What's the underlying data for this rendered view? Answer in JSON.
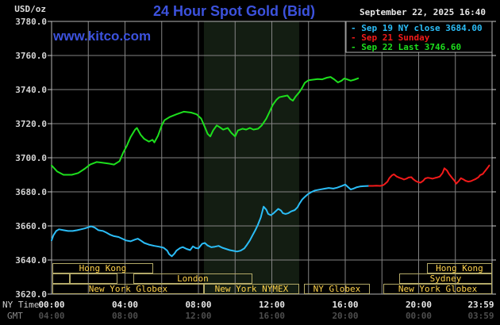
{
  "header": {
    "units_label": "USD/oz",
    "title": "24 Hour Spot Gold (Bid)",
    "watermark": "www.kitco.com",
    "datetime": "September 22, 2025 16:40"
  },
  "legend": {
    "items": [
      {
        "label": "Sep 19 NY close 3684.00",
        "color": "#2bbdf7"
      },
      {
        "label": "Sep 21 Sunday",
        "color": "#f31a1a"
      },
      {
        "label": "Sep 22 Last 3746.60",
        "color": "#1ddf1d"
      }
    ]
  },
  "axes": {
    "y_labels": [
      "3780.0",
      "3760.0",
      "3740.0",
      "3720.0",
      "3700.0",
      "3680.0",
      "3660.0",
      "3640.0",
      "3620.0"
    ],
    "ny_time_label": "NY Time",
    "gmt_label": "GMT",
    "ny_times": [
      "00:00",
      "04:00",
      "08:00",
      "12:00",
      "16:00",
      "20:00",
      "23:59"
    ],
    "gmt_times": [
      "04:00",
      "08:00",
      "12:00",
      "16:00",
      "20:00",
      "00:00",
      "03:59"
    ]
  },
  "sessions": {
    "rows": [
      [
        {
          "label": "Hong Kong",
          "start": 0.04,
          "end": 5.53
        },
        {
          "label": "Hong Kong",
          "start": 20.45,
          "end": 24
        }
      ],
      [
        {
          "label": "",
          "start": 0.04,
          "end": 0.99
        },
        {
          "label": "",
          "start": 0.99,
          "end": 3.59
        },
        {
          "label": "London",
          "start": 4.45,
          "end": 10.94
        },
        {
          "label": "Sydney",
          "start": 18.94,
          "end": 24
        }
      ],
      [
        {
          "label": "New York Globex",
          "start": 0.04,
          "end": 8.3
        },
        {
          "label": "New York NYMEX",
          "start": 8.3,
          "end": 13.49
        },
        {
          "label": "NY Globex",
          "start": 13.75,
          "end": 17.34
        },
        {
          "label": "New York Globex",
          "start": 18.08,
          "end": 24
        }
      ]
    ]
  },
  "chart_data": {
    "type": "line",
    "title": "24 Hour Spot Gold (Bid)",
    "xlabel": "NY Time (hours 00:00-23:59)",
    "ylabel": "USD/oz",
    "ylim": [
      3620,
      3780
    ],
    "xlim_hours": [
      0,
      24
    ],
    "grid": true,
    "y_tick_step": 20,
    "x_tick_step_hours": 2,
    "shaded_band_hours": [
      8.3,
      13.49
    ],
    "band_color": "#131d12",
    "grid_color": "#848484",
    "series": [
      {
        "name": "Sep 19 NY close",
        "color": "#2bbdf7",
        "points": [
          [
            0,
            3651.5
          ],
          [
            0.1,
            3654.5
          ],
          [
            0.25,
            3657
          ],
          [
            0.4,
            3658
          ],
          [
            0.65,
            3657.5
          ],
          [
            0.9,
            3657
          ],
          [
            1.15,
            3657
          ],
          [
            1.4,
            3657.5
          ],
          [
            1.6,
            3658
          ],
          [
            1.8,
            3658.5
          ],
          [
            2,
            3659.2
          ],
          [
            2.15,
            3659.8
          ],
          [
            2.35,
            3659
          ],
          [
            2.55,
            3657.5
          ],
          [
            2.8,
            3657
          ],
          [
            3,
            3656
          ],
          [
            3.2,
            3654.8
          ],
          [
            3.4,
            3654
          ],
          [
            3.65,
            3653.5
          ],
          [
            3.85,
            3652.5
          ],
          [
            4.05,
            3651.5
          ],
          [
            4.3,
            3651
          ],
          [
            4.55,
            3652
          ],
          [
            4.7,
            3652.5
          ],
          [
            4.85,
            3651.5
          ],
          [
            5.05,
            3650
          ],
          [
            5.3,
            3649
          ],
          [
            5.6,
            3648.3
          ],
          [
            5.85,
            3647.8
          ],
          [
            6.1,
            3647.2
          ],
          [
            6.3,
            3645.5
          ],
          [
            6.4,
            3643.5
          ],
          [
            6.55,
            3642.2
          ],
          [
            6.7,
            3643.8
          ],
          [
            6.8,
            3645.5
          ],
          [
            7,
            3647
          ],
          [
            7.15,
            3647.6
          ],
          [
            7.35,
            3646.5
          ],
          [
            7.55,
            3645.8
          ],
          [
            7.7,
            3648
          ],
          [
            7.85,
            3647
          ],
          [
            8,
            3646.8
          ],
          [
            8.2,
            3649.5
          ],
          [
            8.35,
            3650
          ],
          [
            8.5,
            3648.5
          ],
          [
            8.7,
            3647.5
          ],
          [
            8.9,
            3647.8
          ],
          [
            9.1,
            3648.3
          ],
          [
            9.3,
            3647.2
          ],
          [
            9.5,
            3646.5
          ],
          [
            9.7,
            3645.8
          ],
          [
            9.9,
            3645.4
          ],
          [
            10.1,
            3645
          ],
          [
            10.3,
            3645.5
          ],
          [
            10.5,
            3646.8
          ],
          [
            10.65,
            3649
          ],
          [
            10.8,
            3651.5
          ],
          [
            10.95,
            3654.5
          ],
          [
            11.1,
            3657.5
          ],
          [
            11.25,
            3661
          ],
          [
            11.4,
            3665
          ],
          [
            11.55,
            3671.3
          ],
          [
            11.7,
            3669.5
          ],
          [
            11.8,
            3667
          ],
          [
            11.95,
            3666.3
          ],
          [
            12.1,
            3667.5
          ],
          [
            12.25,
            3669
          ],
          [
            12.35,
            3670
          ],
          [
            12.5,
            3669
          ],
          [
            12.6,
            3667.5
          ],
          [
            12.75,
            3667
          ],
          [
            12.9,
            3667.5
          ],
          [
            13.05,
            3668.5
          ],
          [
            13.25,
            3669.3
          ],
          [
            13.4,
            3671
          ],
          [
            13.5,
            3673
          ],
          [
            13.65,
            3675.5
          ],
          [
            13.8,
            3677
          ],
          [
            13.95,
            3678.5
          ],
          [
            14.15,
            3679.8
          ],
          [
            14.35,
            3680.8
          ],
          [
            14.6,
            3681.3
          ],
          [
            14.85,
            3681.8
          ],
          [
            15.1,
            3682.3
          ],
          [
            15.35,
            3681.9
          ],
          [
            15.55,
            3682.4
          ],
          [
            15.8,
            3683.4
          ],
          [
            16,
            3684.3
          ],
          [
            16.15,
            3682.8
          ],
          [
            16.3,
            3681.4
          ],
          [
            16.45,
            3681.9
          ],
          [
            16.6,
            3682.6
          ],
          [
            16.8,
            3683.1
          ],
          [
            17,
            3683.3
          ],
          [
            17.3,
            3683.5
          ]
        ]
      },
      {
        "name": "Sep 21 Sunday",
        "color": "#f31a1a",
        "points": [
          [
            17.3,
            3683.5
          ],
          [
            17.5,
            3683.5
          ],
          [
            17.7,
            3683.6
          ],
          [
            17.9,
            3683.5
          ],
          [
            18.05,
            3683.8
          ],
          [
            18.15,
            3684.5
          ],
          [
            18.3,
            3686
          ],
          [
            18.4,
            3688
          ],
          [
            18.55,
            3689.7
          ],
          [
            18.65,
            3690.3
          ],
          [
            18.8,
            3689
          ],
          [
            18.95,
            3688.3
          ],
          [
            19.1,
            3687.7
          ],
          [
            19.2,
            3687.2
          ],
          [
            19.35,
            3687.8
          ],
          [
            19.45,
            3688.4
          ],
          [
            19.6,
            3688.6
          ],
          [
            19.7,
            3687.5
          ],
          [
            19.85,
            3686.3
          ],
          [
            20,
            3685.6
          ],
          [
            20.1,
            3685.4
          ],
          [
            20.25,
            3686.5
          ],
          [
            20.35,
            3687.8
          ],
          [
            20.5,
            3688.3
          ],
          [
            20.65,
            3688
          ],
          [
            20.75,
            3687.7
          ],
          [
            20.9,
            3688.2
          ],
          [
            21,
            3688.4
          ],
          [
            21.15,
            3689
          ],
          [
            21.3,
            3691
          ],
          [
            21.4,
            3693.8
          ],
          [
            21.55,
            3692.5
          ],
          [
            21.65,
            3690.5
          ],
          [
            21.8,
            3688.5
          ],
          [
            21.95,
            3686.5
          ],
          [
            22.05,
            3684.8
          ],
          [
            22.2,
            3686.5
          ],
          [
            22.3,
            3688
          ],
          [
            22.45,
            3687.2
          ],
          [
            22.55,
            3686.5
          ],
          [
            22.7,
            3686
          ],
          [
            22.85,
            3686.3
          ],
          [
            23,
            3687
          ],
          [
            23.1,
            3687.5
          ],
          [
            23.25,
            3688.5
          ],
          [
            23.35,
            3689.8
          ],
          [
            23.5,
            3690.5
          ],
          [
            23.6,
            3692
          ],
          [
            23.75,
            3694
          ],
          [
            23.85,
            3695.5
          ]
        ]
      },
      {
        "name": "Sep 22 Last",
        "color": "#1ddf1d",
        "points": [
          [
            0,
            3695.5
          ],
          [
            0.3,
            3692
          ],
          [
            0.65,
            3690
          ],
          [
            1.1,
            3690
          ],
          [
            1.45,
            3691
          ],
          [
            1.8,
            3693.5
          ],
          [
            2.1,
            3696
          ],
          [
            2.45,
            3697.5
          ],
          [
            2.8,
            3697
          ],
          [
            3.15,
            3696.5
          ],
          [
            3.4,
            3696
          ],
          [
            3.7,
            3698
          ],
          [
            3.9,
            3703
          ],
          [
            4.1,
            3707
          ],
          [
            4.3,
            3712
          ],
          [
            4.55,
            3716.5
          ],
          [
            4.65,
            3717.5
          ],
          [
            4.85,
            3713.5
          ],
          [
            5.05,
            3711
          ],
          [
            5.3,
            3709.5
          ],
          [
            5.5,
            3710.5
          ],
          [
            5.6,
            3709
          ],
          [
            5.8,
            3713
          ],
          [
            6,
            3719
          ],
          [
            6.15,
            3722
          ],
          [
            6.45,
            3724
          ],
          [
            6.8,
            3725.5
          ],
          [
            7.2,
            3727
          ],
          [
            7.6,
            3726.5
          ],
          [
            7.9,
            3725.5
          ],
          [
            8.15,
            3723
          ],
          [
            8.35,
            3718
          ],
          [
            8.5,
            3714
          ],
          [
            8.65,
            3712.5
          ],
          [
            8.8,
            3716
          ],
          [
            9,
            3719
          ],
          [
            9.15,
            3718
          ],
          [
            9.35,
            3716.5
          ],
          [
            9.6,
            3717.5
          ],
          [
            9.8,
            3714.5
          ],
          [
            10,
            3712.5
          ],
          [
            10.15,
            3716
          ],
          [
            10.4,
            3717
          ],
          [
            10.6,
            3716.5
          ],
          [
            10.8,
            3717.5
          ],
          [
            11,
            3716.5
          ],
          [
            11.25,
            3717
          ],
          [
            11.45,
            3719
          ],
          [
            11.7,
            3723
          ],
          [
            11.9,
            3727.5
          ],
          [
            12.05,
            3731
          ],
          [
            12.25,
            3734
          ],
          [
            12.4,
            3735.5
          ],
          [
            12.6,
            3736
          ],
          [
            12.85,
            3736.5
          ],
          [
            13,
            3734.5
          ],
          [
            13.15,
            3733.5
          ],
          [
            13.3,
            3736
          ],
          [
            13.5,
            3738.5
          ],
          [
            13.65,
            3741
          ],
          [
            13.8,
            3744
          ],
          [
            14,
            3745.5
          ],
          [
            14.25,
            3745.8
          ],
          [
            14.5,
            3746.2
          ],
          [
            14.75,
            3746
          ],
          [
            15,
            3747
          ],
          [
            15.2,
            3747.4
          ],
          [
            15.4,
            3746
          ],
          [
            15.6,
            3744.2
          ],
          [
            15.8,
            3745.2
          ],
          [
            15.95,
            3746.5
          ],
          [
            16.1,
            3746
          ],
          [
            16.3,
            3745.2
          ],
          [
            16.5,
            3745.8
          ],
          [
            16.7,
            3746.6
          ]
        ]
      }
    ]
  }
}
